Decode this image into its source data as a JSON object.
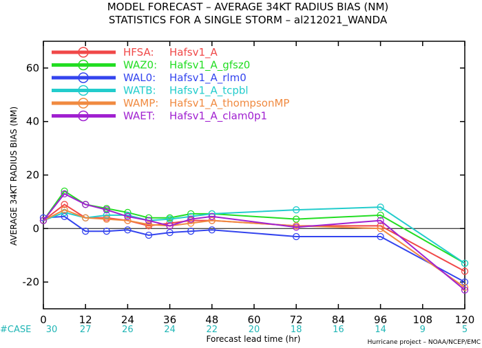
{
  "chart_data": {
    "type": "line",
    "title": "MODEL FORECAST – AVERAGE 34KT RADIUS BIAS (NM)",
    "subtitle": "STATISTICS FOR A SINGLE STORM – al212021_WANDA",
    "xlabel": "Forecast lead time (hr)",
    "ylabel": "AVERAGE 34KT RADIUS BIAS (NM)",
    "xlim": [
      0,
      120
    ],
    "ylim": [
      -30,
      70
    ],
    "x_ticks": [
      0,
      12,
      24,
      36,
      48,
      60,
      72,
      84,
      96,
      108,
      120
    ],
    "y_ticks": [
      -20,
      0,
      20,
      40,
      60
    ],
    "case_label": "#CASE",
    "cases": [
      {
        "x": 0,
        "n": "30"
      },
      {
        "x": 12,
        "n": "27"
      },
      {
        "x": 24,
        "n": "26"
      },
      {
        "x": 36,
        "n": "24"
      },
      {
        "x": 48,
        "n": "22"
      },
      {
        "x": 60,
        "n": "20"
      },
      {
        "x": 72,
        "n": "18"
      },
      {
        "x": 84,
        "n": "16"
      },
      {
        "x": 96,
        "n": "14"
      },
      {
        "x": 108,
        "n": "9"
      },
      {
        "x": 120,
        "n": "5"
      }
    ],
    "credit": "Hurricane project – NOAA/NCEP/EMC",
    "legend_position": "top-left",
    "grid": false,
    "series": [
      {
        "id": "hfsa",
        "name": "HFSA:",
        "desc": "Hafsv1_A",
        "color": "#f04848",
        "x": [
          0,
          6,
          12,
          18,
          24,
          30,
          36,
          42,
          48,
          72,
          96,
          120
        ],
        "y": [
          3,
          9,
          4,
          4,
          3,
          1,
          2,
          3,
          3,
          1,
          1,
          -16
        ]
      },
      {
        "id": "waz0",
        "name": "WAZ0:",
        "desc": "Hafsv1_A_gfsz0",
        "color": "#22dd22",
        "x": [
          0,
          6,
          12,
          18,
          24,
          30,
          36,
          42,
          48,
          72,
          96,
          120
        ],
        "y": [
          3,
          14,
          9,
          7.5,
          6,
          4,
          4,
          5.5,
          5.5,
          3.5,
          5,
          -13
        ]
      },
      {
        "id": "wal0",
        "name": "WAL0:",
        "desc": "Hafsv1_A_rlm0",
        "color": "#3344ee",
        "x": [
          0,
          6,
          12,
          18,
          24,
          30,
          36,
          42,
          48,
          72,
          96,
          120
        ],
        "y": [
          4,
          4.5,
          -1,
          -1,
          -0.5,
          -2.5,
          -1.5,
          -1,
          -0.5,
          -3,
          -3,
          -20
        ]
      },
      {
        "id": "watb",
        "name": "WATB:",
        "desc": "Hafsv1_A_tcpbl",
        "color": "#22cccc",
        "x": [
          0,
          6,
          12,
          18,
          24,
          30,
          36,
          42,
          48,
          72,
          96,
          120
        ],
        "y": [
          3,
          6,
          4,
          5,
          5,
          3,
          3.5,
          4.5,
          5.5,
          7,
          8,
          -13
        ]
      },
      {
        "id": "wamp",
        "name": "WAMP:",
        "desc": "Hafsv1_A_thompsonMP",
        "color": "#f08a40",
        "x": [
          0,
          6,
          12,
          18,
          24,
          30,
          36,
          42,
          48,
          72,
          96,
          120
        ],
        "y": [
          3,
          7,
          4,
          3.5,
          3,
          1.5,
          1,
          2,
          3,
          1,
          0,
          -22
        ]
      },
      {
        "id": "waet",
        "name": "WAET:",
        "desc": "Hafsv1_A_clam0p1",
        "color": "#a020d0",
        "x": [
          0,
          6,
          12,
          18,
          24,
          30,
          36,
          42,
          48,
          72,
          96,
          120
        ],
        "y": [
          3,
          13,
          9,
          7,
          4.5,
          3,
          1,
          3.5,
          4.5,
          0.5,
          3,
          -23
        ]
      }
    ]
  }
}
